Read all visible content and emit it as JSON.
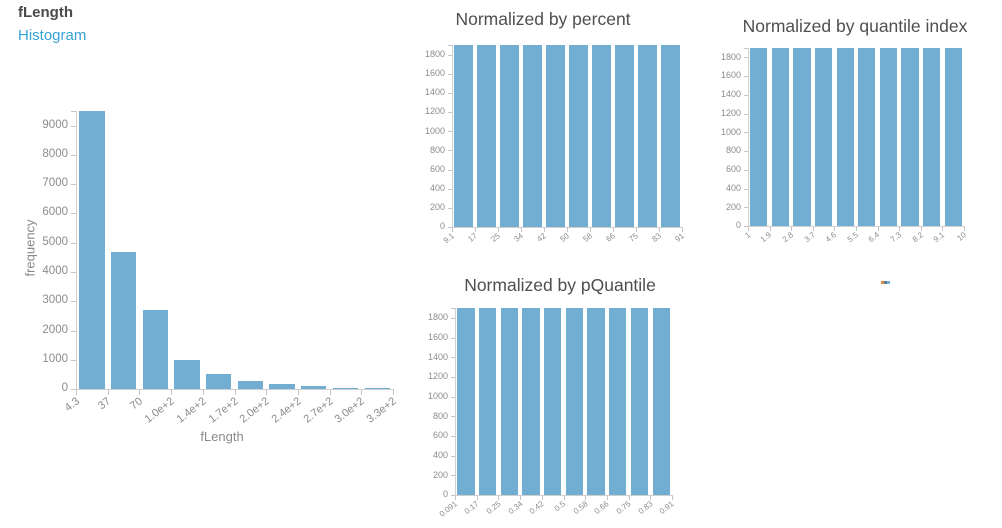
{
  "page": {
    "background": "#ffffff"
  },
  "main_visual": {
    "title": "fLength",
    "subtitle_link": "Histogram"
  },
  "colors": {
    "bar_fill": "#72aed2",
    "axis_text": "#8c8c8c",
    "axis_line": "#cfcfcf",
    "title_text": "#4f4f4f",
    "link_blue": "#36a2d4"
  },
  "chart_data": [
    {
      "key": "main",
      "type": "bar",
      "title": "fLength",
      "xlabel": "fLength",
      "ylabel": "frequency",
      "x_edge_labels": [
        "4.3",
        "37",
        "70",
        "1.0e+2",
        "1.4e+2",
        "1.7e+2",
        "2.0e+2",
        "2.4e+2",
        "2.7e+2",
        "3.0e+2",
        "3.3e+2"
      ],
      "values": [
        9500,
        4700,
        2700,
        1000,
        500,
        280,
        170,
        90,
        40,
        30
      ],
      "yticks": [
        0,
        1000,
        2000,
        3000,
        4000,
        5000,
        6000,
        7000,
        8000,
        9000
      ],
      "ylim": [
        0,
        9500
      ],
      "grid": false,
      "legend": null
    },
    {
      "key": "percent",
      "type": "bar",
      "title": "Normalized by percent",
      "xlabel": "",
      "ylabel": "",
      "x_edge_labels": [
        "9.1",
        "17",
        "25",
        "34",
        "42",
        "50",
        "58",
        "66",
        "75",
        "83",
        "91"
      ],
      "values": [
        1900,
        1900,
        1900,
        1900,
        1900,
        1900,
        1900,
        1900,
        1900,
        1900
      ],
      "yticks": [
        0,
        200,
        400,
        600,
        800,
        1000,
        1200,
        1400,
        1600,
        1800
      ],
      "ylim": [
        0,
        1900
      ],
      "grid": false,
      "legend": null
    },
    {
      "key": "quantile",
      "type": "bar",
      "title": "Normalized by quantile index",
      "xlabel": "",
      "ylabel": "",
      "x_edge_labels": [
        "1",
        "1.9",
        "2.8",
        "3.7",
        "4.6",
        "5.5",
        "6.4",
        "7.3",
        "8.2",
        "9.1",
        "10"
      ],
      "values": [
        1900,
        1900,
        1900,
        1900,
        1900,
        1900,
        1900,
        1900,
        1900,
        1900
      ],
      "yticks": [
        0,
        200,
        400,
        600,
        800,
        1000,
        1200,
        1400,
        1600,
        1800
      ],
      "ylim": [
        0,
        1900
      ],
      "grid": false,
      "legend": null
    },
    {
      "key": "pquantile",
      "type": "bar",
      "title": "Normalized by pQuantile",
      "xlabel": "",
      "ylabel": "",
      "x_edge_labels": [
        "0.091",
        "0.17",
        "0.25",
        "0.34",
        "0.42",
        "0.5",
        "0.58",
        "0.66",
        "0.75",
        "0.83",
        "0.91"
      ],
      "values": [
        1900,
        1900,
        1900,
        1900,
        1900,
        1900,
        1900,
        1900,
        1900,
        1900
      ],
      "yticks": [
        0,
        200,
        400,
        600,
        800,
        1000,
        1200,
        1400,
        1600,
        1800
      ],
      "ylim": [
        0,
        1900
      ],
      "grid": false,
      "legend": null
    }
  ]
}
